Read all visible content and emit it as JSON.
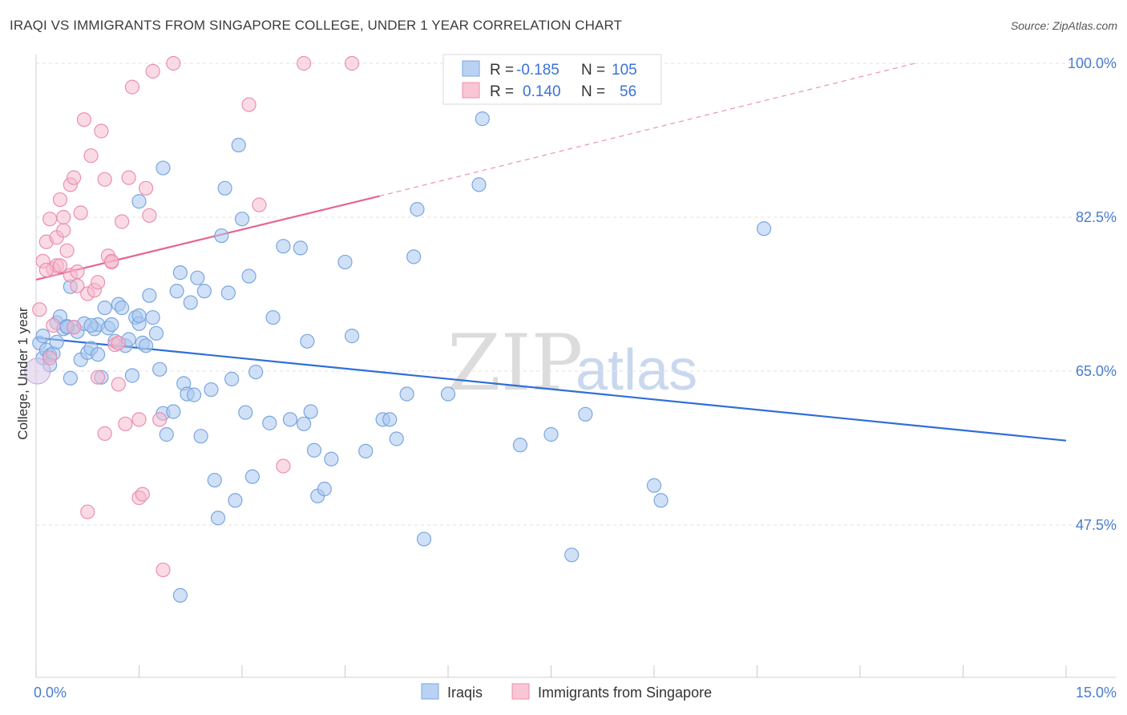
{
  "title": "IRAQI VS IMMIGRANTS FROM SINGAPORE COLLEGE, UNDER 1 YEAR CORRELATION CHART",
  "source": "Source: ZipAtlas.com",
  "watermark": {
    "zip": "ZIP",
    "atlas": "atlas"
  },
  "colors": {
    "blue": "#a9c8f0",
    "blue_stroke": "#7aa6e0",
    "blue_line": "#2f6fd6",
    "pink": "#f6b8cb",
    "pink_stroke": "#ec8fae",
    "pink_line": "#e5658f"
  },
  "stats": {
    "blue": {
      "r_label": "R =",
      "r_value": "-0.185",
      "n_label": "N =",
      "n_value": "105"
    },
    "pink": {
      "r_label": "R =",
      "r_value": "0.140",
      "n_label": "N =",
      "n_value": "56"
    }
  },
  "chart_data": {
    "type": "scatter",
    "title": "IRAQI VS IMMIGRANTS FROM SINGAPORE COLLEGE, UNDER 1 YEAR CORRELATION CHART",
    "xlabel": "",
    "ylabel": "College, Under 1 year",
    "xlim": [
      0,
      15
    ],
    "ylim": [
      30,
      102
    ],
    "x_tick_labels": [
      {
        "value": 0,
        "label": "0.0%"
      },
      {
        "value": 15,
        "label": "15.0%"
      }
    ],
    "y_tick_labels": [
      {
        "value": 47.5,
        "label": "47.5%"
      },
      {
        "value": 65.0,
        "label": "65.0%"
      },
      {
        "value": 82.5,
        "label": "82.5%"
      },
      {
        "value": 100.0,
        "label": "100.0%"
      }
    ],
    "legend": [
      "Iraqis",
      "Immigrants from Singapore"
    ],
    "series": [
      {
        "name": "Iraqis",
        "color": "#a9c8f0",
        "trend": {
          "x": [
            0,
            15
          ],
          "y": [
            68.8,
            57.1
          ]
        },
        "points": [
          [
            0.05,
            68.2
          ],
          [
            0.1,
            66.5
          ],
          [
            0.15,
            67.4
          ],
          [
            0.2,
            66.8
          ],
          [
            0.25,
            67.0
          ],
          [
            0.3,
            70.5
          ],
          [
            0.35,
            71.2
          ],
          [
            0.4,
            69.8
          ],
          [
            0.45,
            70.1
          ],
          [
            0.5,
            74.6
          ],
          [
            0.5,
            64.2
          ],
          [
            0.55,
            70.0
          ],
          [
            0.6,
            69.5
          ],
          [
            0.65,
            66.3
          ],
          [
            0.7,
            70.4
          ],
          [
            0.75,
            67.1
          ],
          [
            0.8,
            67.6
          ],
          [
            0.85,
            69.8
          ],
          [
            0.9,
            70.3
          ],
          [
            0.95,
            64.3
          ],
          [
            0.8,
            70.2
          ],
          [
            0.9,
            66.9
          ],
          [
            1.0,
            72.2
          ],
          [
            1.05,
            69.9
          ],
          [
            1.1,
            70.3
          ],
          [
            1.15,
            68.4
          ],
          [
            1.2,
            72.6
          ],
          [
            1.25,
            72.2
          ],
          [
            1.3,
            67.9
          ],
          [
            1.35,
            68.6
          ],
          [
            1.4,
            64.5
          ],
          [
            1.45,
            71.1
          ],
          [
            1.5,
            70.4
          ],
          [
            1.55,
            68.2
          ],
          [
            1.6,
            67.9
          ],
          [
            1.65,
            73.6
          ],
          [
            1.7,
            71.1
          ],
          [
            1.75,
            69.3
          ],
          [
            1.8,
            65.2
          ],
          [
            1.85,
            60.2
          ],
          [
            1.5,
            84.3
          ],
          [
            1.5,
            71.3
          ],
          [
            1.9,
            57.8
          ],
          [
            2.0,
            60.4
          ],
          [
            2.05,
            74.1
          ],
          [
            2.1,
            76.2
          ],
          [
            2.15,
            63.6
          ],
          [
            2.2,
            62.4
          ],
          [
            2.25,
            72.8
          ],
          [
            2.3,
            62.3
          ],
          [
            1.85,
            88.1
          ],
          [
            2.35,
            75.6
          ],
          [
            2.4,
            57.6
          ],
          [
            2.45,
            74.1
          ],
          [
            2.55,
            62.9
          ],
          [
            2.6,
            52.6
          ],
          [
            2.65,
            48.3
          ],
          [
            2.7,
            80.4
          ],
          [
            2.75,
            85.8
          ],
          [
            2.8,
            73.9
          ],
          [
            2.85,
            64.1
          ],
          [
            2.9,
            50.3
          ],
          [
            2.95,
            90.7
          ],
          [
            3.0,
            82.3
          ],
          [
            3.05,
            60.3
          ],
          [
            3.1,
            75.8
          ],
          [
            3.15,
            53.0
          ],
          [
            3.2,
            64.9
          ],
          [
            3.4,
            59.1
          ],
          [
            3.45,
            71.1
          ],
          [
            3.6,
            79.2
          ],
          [
            3.7,
            59.5
          ],
          [
            3.85,
            79.0
          ],
          [
            3.9,
            59.0
          ],
          [
            3.95,
            68.4
          ],
          [
            4.0,
            60.4
          ],
          [
            4.05,
            56.0
          ],
          [
            4.1,
            50.8
          ],
          [
            4.2,
            51.6
          ],
          [
            4.3,
            55.0
          ],
          [
            2.1,
            39.5
          ],
          [
            4.5,
            77.4
          ],
          [
            4.6,
            69.0
          ],
          [
            4.8,
            55.9
          ],
          [
            5.05,
            59.5
          ],
          [
            5.15,
            59.5
          ],
          [
            5.25,
            57.3
          ],
          [
            5.4,
            62.4
          ],
          [
            5.5,
            78.0
          ],
          [
            5.55,
            83.4
          ],
          [
            5.65,
            45.9
          ],
          [
            6.0,
            62.4
          ],
          [
            6.45,
            86.2
          ],
          [
            6.5,
            93.7
          ],
          [
            7.05,
            56.6
          ],
          [
            7.5,
            57.8
          ],
          [
            7.8,
            44.1
          ],
          [
            8.0,
            60.1
          ],
          [
            9.0,
            52.0
          ],
          [
            9.1,
            50.3
          ],
          [
            10.6,
            81.2
          ],
          [
            0.1,
            69.0
          ],
          [
            0.2,
            65.7
          ],
          [
            0.3,
            68.3
          ],
          [
            0.45,
            70.0
          ]
        ]
      },
      {
        "name": "Immigrants from Singapore",
        "color": "#f6b8cb",
        "trend": {
          "x": [
            0,
            5.0
          ],
          "y": [
            75.4,
            84.9
          ]
        },
        "trend_extension": {
          "x": [
            5.0,
            12.8
          ],
          "y": [
            84.9,
            100.0
          ]
        },
        "points": [
          [
            0.05,
            72.0
          ],
          [
            0.1,
            77.5
          ],
          [
            0.15,
            79.7
          ],
          [
            0.2,
            82.3
          ],
          [
            0.25,
            76.6
          ],
          [
            0.3,
            80.2
          ],
          [
            0.35,
            84.5
          ],
          [
            0.4,
            81.0
          ],
          [
            0.45,
            78.7
          ],
          [
            0.5,
            86.2
          ],
          [
            0.5,
            75.9
          ],
          [
            0.55,
            87.0
          ],
          [
            0.6,
            74.7
          ],
          [
            0.65,
            83.0
          ],
          [
            0.7,
            93.6
          ],
          [
            0.75,
            73.8
          ],
          [
            0.8,
            89.5
          ],
          [
            0.85,
            74.2
          ],
          [
            0.9,
            75.1
          ],
          [
            0.95,
            92.3
          ],
          [
            1.0,
            86.8
          ],
          [
            1.05,
            78.1
          ],
          [
            1.1,
            77.4
          ],
          [
            1.15,
            68.0
          ],
          [
            1.2,
            63.5
          ],
          [
            1.25,
            82.0
          ],
          [
            1.3,
            59.0
          ],
          [
            1.35,
            87.0
          ],
          [
            1.4,
            97.3
          ],
          [
            1.5,
            59.5
          ],
          [
            1.6,
            85.8
          ],
          [
            1.7,
            99.1
          ],
          [
            1.8,
            59.5
          ],
          [
            1.5,
            50.6
          ],
          [
            1.55,
            51.0
          ],
          [
            1.65,
            82.7
          ],
          [
            1.85,
            42.4
          ],
          [
            2.0,
            100.0
          ],
          [
            3.1,
            95.3
          ],
          [
            3.25,
            83.9
          ],
          [
            3.6,
            54.2
          ],
          [
            3.9,
            100.0
          ],
          [
            4.6,
            100.0
          ],
          [
            0.75,
            49.0
          ],
          [
            0.9,
            64.3
          ],
          [
            0.3,
            77.0
          ],
          [
            0.15,
            76.5
          ],
          [
            0.4,
            82.5
          ],
          [
            0.2,
            66.5
          ],
          [
            0.25,
            70.2
          ],
          [
            0.55,
            70.0
          ],
          [
            0.6,
            76.3
          ],
          [
            0.35,
            77.0
          ],
          [
            1.0,
            57.9
          ],
          [
            1.1,
            77.5
          ],
          [
            1.2,
            68.2
          ]
        ]
      }
    ]
  }
}
